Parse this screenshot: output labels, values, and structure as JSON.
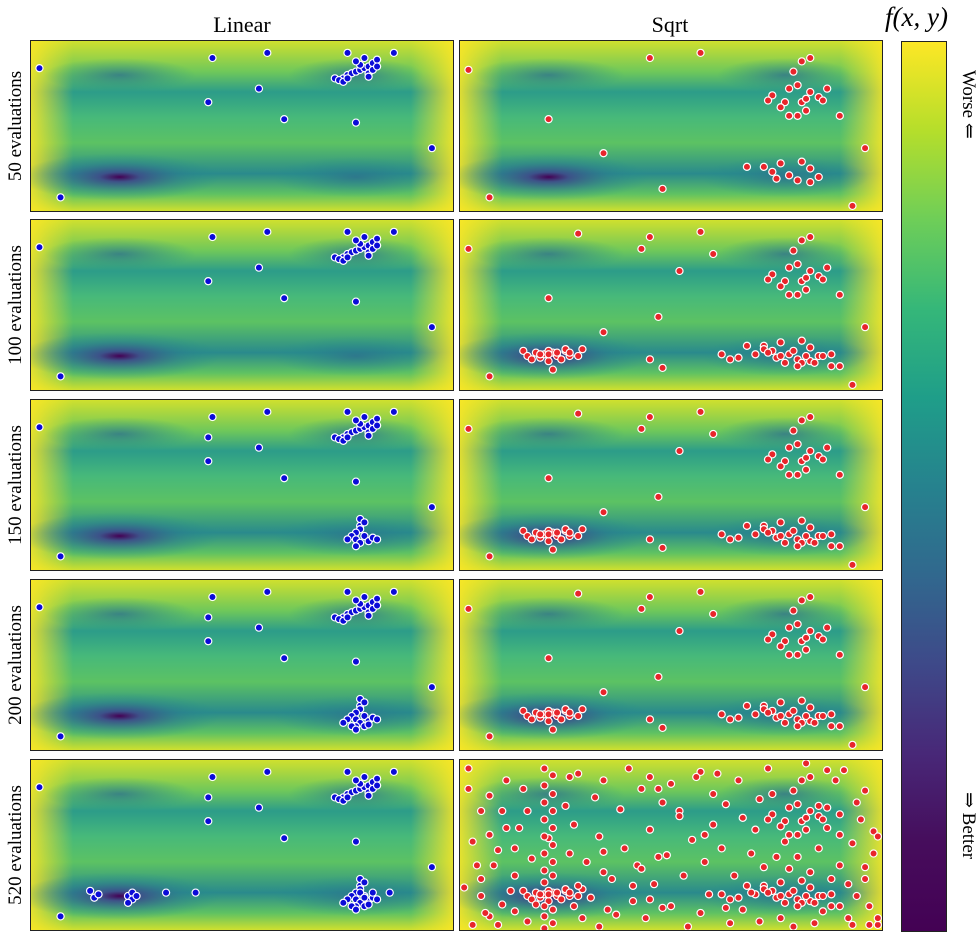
{
  "chart_data": {
    "type": "scatter",
    "description": "Grid of contour/heatmap panels of f(x,y) with sampled evaluation points",
    "column_titles": [
      "Linear",
      "Sqrt"
    ],
    "row_labels": [
      "50 evaluations",
      "100 evaluations",
      "150 evaluations",
      "200 evaluations",
      "520 evaluations"
    ],
    "colorbar": {
      "title": "f(x, y)",
      "top_label": "Worse ⇐",
      "bottom_label": "⇒ Better",
      "colormap": "viridis"
    },
    "domain": {
      "x": [
        0,
        1
      ],
      "y": [
        0,
        1
      ]
    },
    "minima": [
      [
        0.21,
        0.8
      ],
      [
        0.77,
        0.8
      ]
    ],
    "series_colors": {
      "Linear": "#0b0bd8",
      "Sqrt": "#e8252b"
    },
    "samples": {
      "Linear": {
        "base": [
          [
            0.02,
            0.16
          ],
          [
            0.43,
            0.1
          ],
          [
            0.56,
            0.07
          ],
          [
            0.75,
            0.07
          ],
          [
            0.86,
            0.07
          ],
          [
            0.42,
            0.36
          ],
          [
            0.54,
            0.28
          ],
          [
            0.6,
            0.46
          ],
          [
            0.77,
            0.48
          ],
          [
            0.95,
            0.63
          ],
          [
            0.07,
            0.92
          ],
          [
            0.74,
            0.22
          ],
          [
            0.75,
            0.2
          ],
          [
            0.76,
            0.19
          ],
          [
            0.77,
            0.18
          ],
          [
            0.78,
            0.17
          ],
          [
            0.79,
            0.16
          ],
          [
            0.8,
            0.15
          ],
          [
            0.81,
            0.13
          ],
          [
            0.82,
            0.11
          ],
          [
            0.8,
            0.19
          ],
          [
            0.81,
            0.17
          ],
          [
            0.78,
            0.14
          ],
          [
            0.77,
            0.12
          ],
          [
            0.79,
            0.1
          ],
          [
            0.8,
            0.21
          ],
          [
            0.82,
            0.15
          ]
        ],
        "early": [
          [
            0.72,
            0.22
          ],
          [
            0.73,
            0.23
          ],
          [
            0.74,
            0.24
          ],
          [
            0.75,
            0.22
          ]
        ],
        "mid": [
          [
            0.42,
            0.22
          ],
          [
            0.78,
            0.74
          ],
          [
            0.78,
            0.76
          ],
          [
            0.77,
            0.78
          ],
          [
            0.76,
            0.8
          ],
          [
            0.75,
            0.82
          ],
          [
            0.77,
            0.82
          ],
          [
            0.79,
            0.8
          ],
          [
            0.8,
            0.83
          ],
          [
            0.81,
            0.81
          ],
          [
            0.82,
            0.82
          ],
          [
            0.78,
            0.84
          ],
          [
            0.77,
            0.86
          ],
          [
            0.78,
            0.7
          ],
          [
            0.79,
            0.72
          ]
        ],
        "late": [
          [
            0.76,
            0.86
          ],
          [
            0.79,
            0.86
          ],
          [
            0.8,
            0.85
          ],
          [
            0.74,
            0.84
          ],
          [
            0.77,
            0.88
          ]
        ],
        "final": [
          [
            0.14,
            0.77
          ],
          [
            0.15,
            0.81
          ],
          [
            0.16,
            0.79
          ],
          [
            0.23,
            0.8
          ],
          [
            0.24,
            0.78
          ],
          [
            0.24,
            0.82
          ],
          [
            0.23,
            0.84
          ],
          [
            0.25,
            0.8
          ],
          [
            0.32,
            0.78
          ],
          [
            0.39,
            0.78
          ],
          [
            0.85,
            0.78
          ],
          [
            0.78,
            0.78
          ],
          [
            0.81,
            0.78
          ],
          [
            0.79,
            0.81
          ]
        ]
      },
      "Sqrt": {
        "base": [
          [
            0.02,
            0.17
          ],
          [
            0.45,
            0.1
          ],
          [
            0.57,
            0.07
          ],
          [
            0.79,
            0.18
          ],
          [
            0.81,
            0.12
          ],
          [
            0.83,
            0.1
          ],
          [
            0.83,
            0.3
          ],
          [
            0.77,
            0.36
          ],
          [
            0.81,
            0.36
          ],
          [
            0.76,
            0.39
          ],
          [
            0.82,
            0.41
          ],
          [
            0.78,
            0.44
          ],
          [
            0.8,
            0.44
          ],
          [
            0.74,
            0.32
          ],
          [
            0.73,
            0.35
          ],
          [
            0.85,
            0.33
          ],
          [
            0.87,
            0.28
          ],
          [
            0.86,
            0.35
          ],
          [
            0.78,
            0.28
          ],
          [
            0.8,
            0.26
          ],
          [
            0.82,
            0.34
          ],
          [
            0.21,
            0.46
          ],
          [
            0.34,
            0.66
          ],
          [
            0.48,
            0.87
          ],
          [
            0.96,
            0.63
          ],
          [
            0.93,
            0.97
          ],
          [
            0.07,
            0.92
          ],
          [
            0.9,
            0.44
          ],
          [
            0.72,
            0.74
          ],
          [
            0.74,
            0.77
          ],
          [
            0.75,
            0.81
          ],
          [
            0.76,
            0.72
          ],
          [
            0.78,
            0.79
          ],
          [
            0.8,
            0.82
          ],
          [
            0.81,
            0.71
          ],
          [
            0.83,
            0.75
          ],
          [
            0.85,
            0.8
          ],
          [
            0.83,
            0.83
          ],
          [
            0.68,
            0.74
          ]
        ],
        "later": [
          [
            0.15,
            0.77
          ],
          [
            0.16,
            0.8
          ],
          [
            0.17,
            0.82
          ],
          [
            0.18,
            0.78
          ],
          [
            0.19,
            0.81
          ],
          [
            0.2,
            0.79
          ],
          [
            0.21,
            0.83
          ],
          [
            0.22,
            0.78
          ],
          [
            0.23,
            0.8
          ],
          [
            0.24,
            0.82
          ],
          [
            0.25,
            0.77
          ],
          [
            0.26,
            0.8
          ],
          [
            0.25,
            0.76
          ],
          [
            0.29,
            0.76
          ],
          [
            0.28,
            0.8
          ],
          [
            0.26,
            0.78
          ],
          [
            0.23,
            0.78
          ],
          [
            0.21,
            0.77
          ],
          [
            0.21,
            0.79
          ],
          [
            0.19,
            0.79
          ],
          [
            0.62,
            0.79
          ],
          [
            0.64,
            0.82
          ],
          [
            0.66,
            0.81
          ],
          [
            0.7,
            0.79
          ],
          [
            0.72,
            0.76
          ],
          [
            0.73,
            0.78
          ],
          [
            0.76,
            0.8
          ],
          [
            0.79,
            0.77
          ],
          [
            0.81,
            0.84
          ],
          [
            0.82,
            0.8
          ],
          [
            0.84,
            0.84
          ],
          [
            0.86,
            0.8
          ],
          [
            0.88,
            0.86
          ],
          [
            0.88,
            0.79
          ],
          [
            0.77,
            0.84
          ],
          [
            0.8,
            0.86
          ],
          [
            0.28,
            0.08
          ],
          [
            0.43,
            0.17
          ],
          [
            0.52,
            0.3
          ],
          [
            0.6,
            0.2
          ],
          [
            0.47,
            0.57
          ],
          [
            0.45,
            0.82
          ],
          [
            0.9,
            0.86
          ],
          [
            0.22,
            0.88
          ]
        ],
        "final": [
          [
            0.01,
            0.75
          ],
          [
            0.03,
            0.48
          ],
          [
            0.04,
            0.62
          ],
          [
            0.05,
            0.8
          ],
          [
            0.06,
            0.9
          ],
          [
            0.07,
            0.44
          ],
          [
            0.08,
            0.62
          ],
          [
            0.09,
            0.53
          ],
          [
            0.1,
            0.3
          ],
          [
            0.12,
            0.77
          ],
          [
            0.13,
            0.52
          ],
          [
            0.14,
            0.4
          ],
          [
            0.15,
            0.17
          ],
          [
            0.16,
            0.95
          ],
          [
            0.18,
            0.85
          ],
          [
            0.2,
            0.05
          ],
          [
            0.2,
            0.15
          ],
          [
            0.2,
            0.25
          ],
          [
            0.2,
            0.35
          ],
          [
            0.2,
            0.45
          ],
          [
            0.2,
            0.55
          ],
          [
            0.2,
            0.65
          ],
          [
            0.2,
            0.72
          ],
          [
            0.2,
            0.86
          ],
          [
            0.2,
            0.92
          ],
          [
            0.2,
            0.99
          ],
          [
            0.22,
            0.09
          ],
          [
            0.22,
            0.2
          ],
          [
            0.22,
            0.3
          ],
          [
            0.22,
            0.4
          ],
          [
            0.22,
            0.5
          ],
          [
            0.22,
            0.6
          ],
          [
            0.22,
            0.68
          ],
          [
            0.22,
            0.88
          ],
          [
            0.22,
            0.96
          ],
          [
            0.25,
            0.27
          ],
          [
            0.26,
            0.55
          ],
          [
            0.27,
            0.38
          ],
          [
            0.29,
            0.93
          ],
          [
            0.3,
            0.6
          ],
          [
            0.31,
            0.81
          ],
          [
            0.32,
            0.22
          ],
          [
            0.33,
            0.45
          ],
          [
            0.34,
            0.12
          ],
          [
            0.35,
            0.88
          ],
          [
            0.36,
            0.7
          ],
          [
            0.38,
            0.29
          ],
          [
            0.39,
            0.52
          ],
          [
            0.4,
            0.05
          ],
          [
            0.41,
            0.83
          ],
          [
            0.42,
            0.62
          ],
          [
            0.44,
            0.93
          ],
          [
            0.45,
            0.41
          ],
          [
            0.46,
            0.73
          ],
          [
            0.47,
            0.17
          ],
          [
            0.49,
            0.56
          ],
          [
            0.5,
            0.86
          ],
          [
            0.52,
            0.33
          ],
          [
            0.53,
            0.68
          ],
          [
            0.55,
            0.47
          ],
          [
            0.56,
            0.1
          ],
          [
            0.57,
            0.9
          ],
          [
            0.58,
            0.6
          ],
          [
            0.59,
            0.79
          ],
          [
            0.6,
            0.38
          ],
          [
            0.62,
            0.52
          ],
          [
            0.63,
            0.26
          ],
          [
            0.64,
            0.96
          ],
          [
            0.65,
            0.68
          ],
          [
            0.66,
            0.12
          ],
          [
            0.67,
            0.88
          ],
          [
            0.69,
            0.55
          ],
          [
            0.7,
            0.41
          ],
          [
            0.71,
            0.95
          ],
          [
            0.72,
            0.63
          ],
          [
            0.73,
            0.05
          ],
          [
            0.75,
            0.57
          ],
          [
            0.76,
            0.93
          ],
          [
            0.78,
            0.64
          ],
          [
            0.8,
            0.57
          ],
          [
            0.82,
            0.02
          ],
          [
            0.83,
            0.66
          ],
          [
            0.84,
            0.96
          ],
          [
            0.85,
            0.52
          ],
          [
            0.86,
            0.89
          ],
          [
            0.87,
            0.4
          ],
          [
            0.88,
            0.7
          ],
          [
            0.89,
            0.12
          ],
          [
            0.9,
            0.62
          ],
          [
            0.91,
            0.06
          ],
          [
            0.92,
            0.93
          ],
          [
            0.93,
            0.49
          ],
          [
            0.94,
            0.8
          ],
          [
            0.95,
            0.35
          ],
          [
            0.96,
            0.7
          ],
          [
            0.97,
            0.86
          ],
          [
            0.98,
            0.55
          ],
          [
            0.99,
            0.97
          ],
          [
            0.07,
            0.21
          ],
          [
            0.11,
            0.12
          ],
          [
            0.13,
            0.68
          ],
          [
            0.28,
            0.74
          ],
          [
            0.37,
            0.91
          ],
          [
            0.48,
            0.25
          ],
          [
            0.61,
            0.08
          ],
          [
            0.74,
            0.2
          ],
          [
            0.77,
            0.48
          ],
          [
            0.9,
            0.32
          ],
          [
            0.96,
            0.18
          ],
          [
            0.98,
            0.42
          ],
          [
            0.99,
            0.93
          ],
          [
            0.02,
            0.05
          ],
          [
            0.05,
            0.3
          ],
          [
            0.03,
            0.97
          ],
          [
            0.1,
            0.85
          ],
          [
            0.17,
            0.58
          ],
          [
            0.33,
            0.98
          ],
          [
            0.41,
            0.74
          ],
          [
            0.54,
            0.98
          ],
          [
            0.67,
            0.34
          ],
          [
            0.79,
            0.98
          ],
          [
            0.87,
            0.06
          ],
          [
            0.97,
            0.97
          ],
          [
            0.11,
            0.4
          ],
          [
            0.16,
            0.3
          ],
          [
            0.26,
            0.1
          ],
          [
            0.43,
            0.64
          ],
          [
            0.58,
            0.44
          ],
          [
            0.69,
            0.78
          ],
          [
            0.13,
            0.89
          ],
          [
            0.27,
            0.86
          ],
          [
            0.34,
            0.54
          ],
          [
            0.5,
            0.14
          ],
          [
            0.63,
            0.87
          ],
          [
            0.71,
            0.23
          ],
          [
            0.85,
            0.27
          ],
          [
            0.92,
            0.73
          ],
          [
            0.05,
            0.7
          ],
          [
            0.09,
            0.97
          ],
          [
            0.94,
            0.25
          ],
          [
            0.99,
            0.45
          ]
        ]
      }
    }
  }
}
